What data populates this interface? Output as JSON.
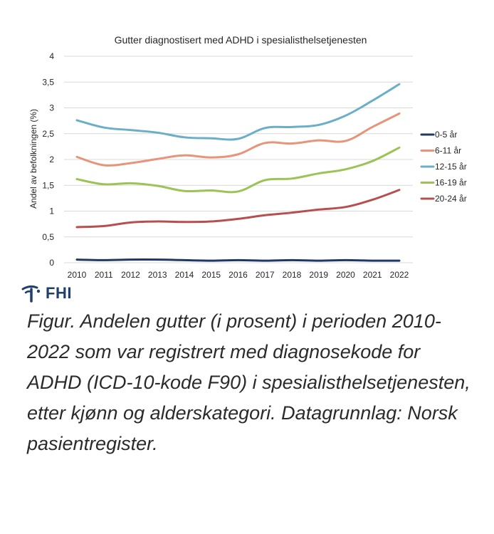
{
  "chart_data": {
    "type": "line",
    "title": "Gutter diagnostisert med ADHD i spesialisthelsetjenesten",
    "xlabel": "",
    "ylabel": "Andel av befolkningen (%)",
    "x": [
      "2010",
      "2011",
      "2012",
      "2013",
      "2014",
      "2015",
      "2016",
      "2017",
      "2018",
      "2019",
      "2020",
      "2021",
      "2022"
    ],
    "ylim": [
      0,
      4
    ],
    "yticks": [
      "0",
      "0,5",
      "1",
      "1,5",
      "2",
      "2,5",
      "3",
      "3,5",
      "4"
    ],
    "grid": true,
    "legend_position": "right",
    "series": [
      {
        "name": "0-5 år",
        "color": "#203864",
        "values": [
          0.06,
          0.05,
          0.06,
          0.06,
          0.05,
          0.04,
          0.05,
          0.04,
          0.05,
          0.04,
          0.05,
          0.04,
          0.04
        ]
      },
      {
        "name": "6-11 år",
        "color": "#e8947a",
        "values": [
          2.05,
          1.89,
          1.93,
          2.01,
          2.08,
          2.04,
          2.1,
          2.32,
          2.31,
          2.37,
          2.36,
          2.63,
          2.89
        ]
      },
      {
        "name": "12-15 år",
        "color": "#6aafc7",
        "values": [
          2.76,
          2.62,
          2.57,
          2.52,
          2.43,
          2.41,
          2.4,
          2.61,
          2.63,
          2.67,
          2.85,
          3.14,
          3.46
        ]
      },
      {
        "name": "16-19 år",
        "color": "#9dc356",
        "values": [
          1.62,
          1.52,
          1.54,
          1.49,
          1.39,
          1.4,
          1.38,
          1.6,
          1.63,
          1.73,
          1.81,
          1.97,
          2.23
        ]
      },
      {
        "name": "20-24 år",
        "color": "#b74f4f",
        "values": [
          0.69,
          0.71,
          0.78,
          0.8,
          0.79,
          0.8,
          0.85,
          0.92,
          0.97,
          1.03,
          1.08,
          1.22,
          1.41
        ]
      }
    ]
  },
  "logo": {
    "text": "FHI",
    "color": "#1f3f6e"
  },
  "caption": "Figur. Andelen gutter (i prosent) i perioden 2010-2022 som var registrert med diagnosekode for ADHD (ICD-10-kode F90) i spesialisthelsetjenesten, etter kjønn og alderskategori. Datagrunnlag: Norsk pasientregister."
}
